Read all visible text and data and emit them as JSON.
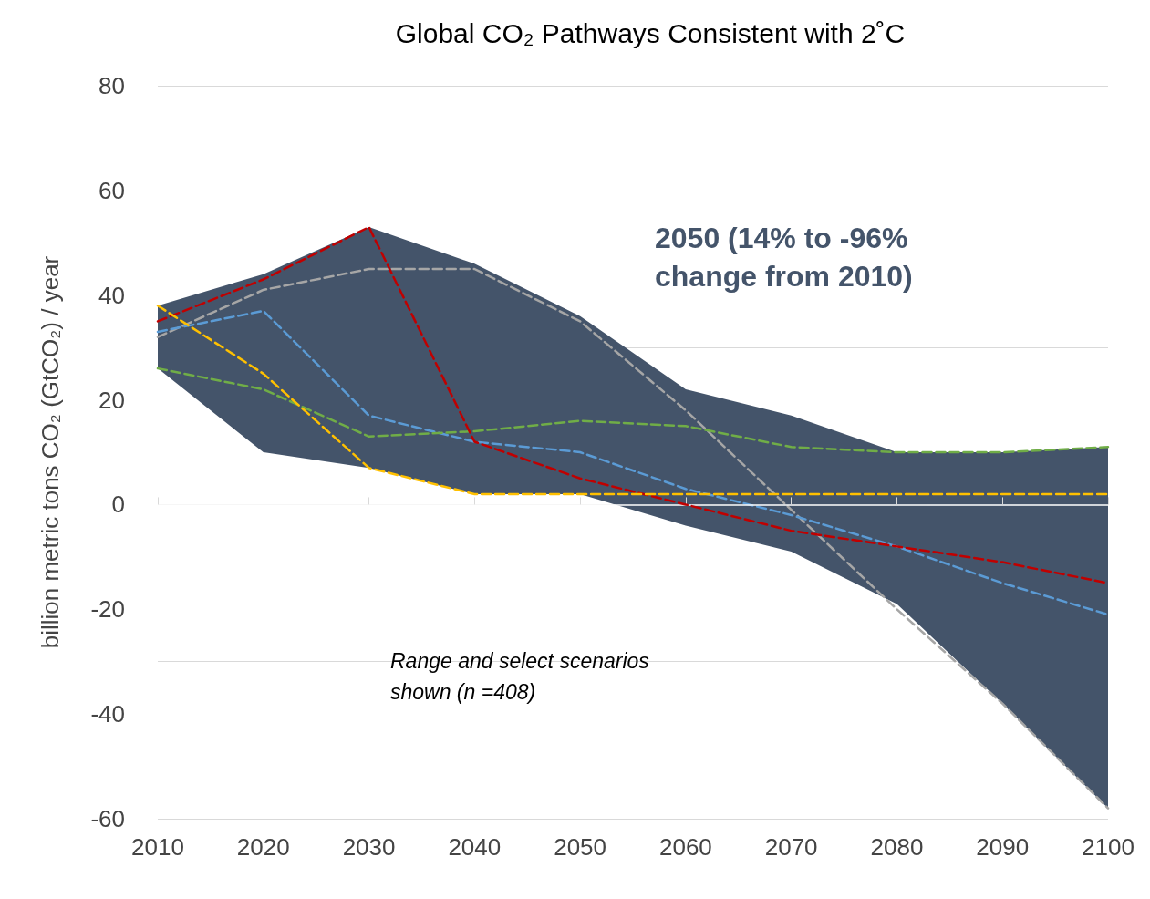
{
  "chart_data": {
    "type": "line",
    "title": "Global CO₂ Pathways Consistent with 2˚C",
    "ylabel": "billion metric tons CO₂ (GtCO₂) / year",
    "categories": [
      "2010",
      "2020",
      "2030",
      "2040",
      "2050",
      "2060",
      "2070",
      "2080",
      "2090",
      "2100"
    ],
    "series": [
      {
        "color": "#a6a6a6",
        "values": [
          32,
          41,
          45,
          45,
          35,
          18,
          -1,
          -20,
          -38,
          -58
        ],
        "upper": [
          38,
          44,
          53,
          46,
          36,
          22,
          17,
          10,
          10,
          11
        ],
        "lower": [
          26,
          10,
          7,
          2,
          2,
          -4,
          -9,
          -19,
          -38,
          -58
        ]
      },
      {
        "color": "#5b9bd5",
        "values": [
          33,
          37,
          17,
          12,
          10,
          3,
          -2,
          -8,
          -15,
          -21
        ]
      },
      {
        "color": "#70ad47",
        "values": [
          26,
          22,
          13,
          14,
          16,
          15,
          11,
          10,
          10,
          11
        ]
      },
      {
        "color": "#c00000",
        "values": [
          35,
          43,
          53,
          12,
          5,
          0,
          -5,
          -8,
          -11,
          -15
        ]
      },
      {
        "color": "#ffc000",
        "values": [
          38,
          25,
          7,
          2,
          2,
          2,
          2,
          2,
          2,
          2
        ]
      }
    ],
    "ylim": [
      -60,
      80
    ],
    "yticks": [
      -60,
      -40,
      -20,
      0,
      20,
      40,
      60,
      80
    ],
    "grid": "y",
    "marker": "none",
    "line_style": "dashed",
    "annotations": [
      "2050 (14% to -96% change from 2010)",
      "Range and select scenarios shown (n =408)"
    ]
  }
}
